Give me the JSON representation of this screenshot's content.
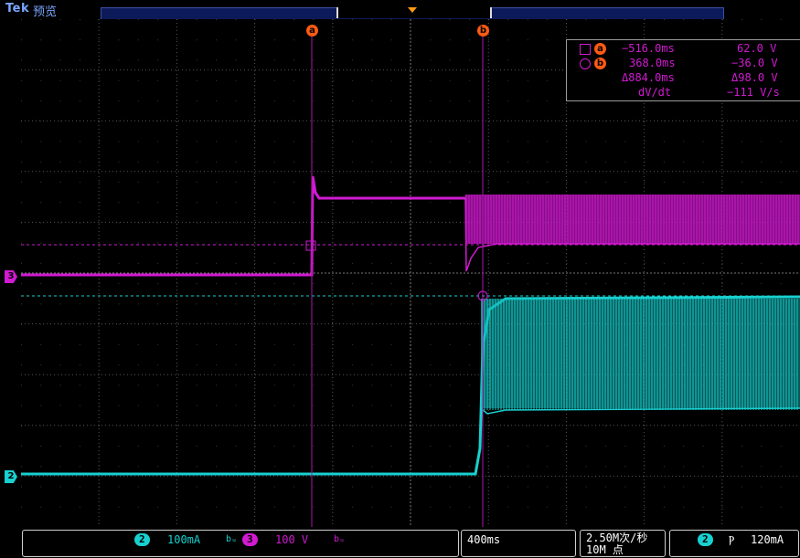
{
  "header": {
    "brand": "Tek",
    "mode": "预览"
  },
  "cursors": {
    "a_label": "a",
    "b_label": "b"
  },
  "readout": {
    "a_time": "−516.0ms",
    "a_value": "62.0 V",
    "b_time": "368.0ms",
    "b_value": "−36.0 V",
    "delta_time": "Δ884.0ms",
    "delta_value": "Δ98.0 V",
    "slope_label": "dV/dt",
    "slope_value": "−111 V/s"
  },
  "channel_markers": {
    "ch3": "3",
    "ch2": "2"
  },
  "bottom": {
    "ch2_num": "2",
    "ch2_scale": "100mA",
    "ch2_bw": "bᵤ",
    "ch3_num": "3",
    "ch3_scale": "100 V",
    "ch3_bw": "bᵤ",
    "timebase": "400ms",
    "sample_rate": "2.50M次/秒",
    "record_length": "10M 点",
    "trig_ch": "2",
    "trig_slope": "Ⲣ",
    "trig_level": "120mA"
  },
  "colors": {
    "ch3": "#d21ad2",
    "ch2": "#18d0d0",
    "cursor": "#ff5a14",
    "grid": "#5a5a5a"
  }
}
